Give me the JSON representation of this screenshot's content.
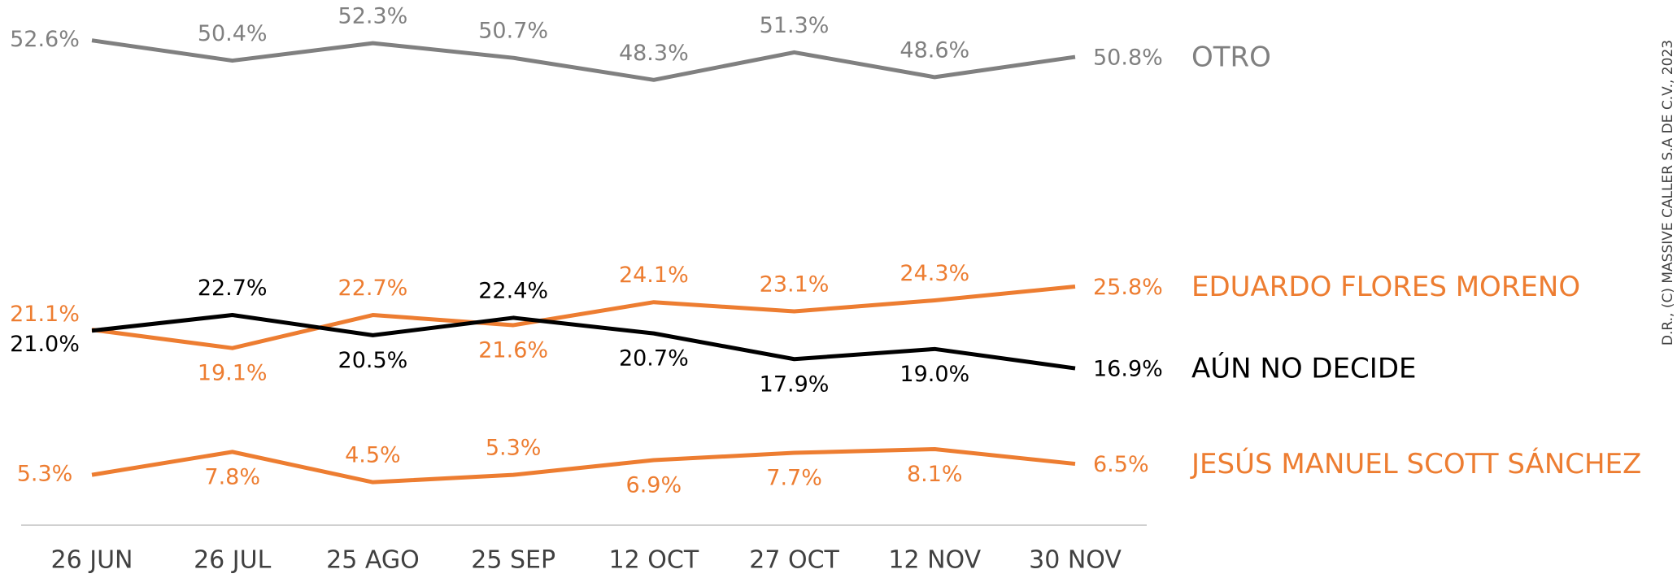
{
  "chart_data": {
    "type": "line",
    "categories": [
      "26 JUN",
      "26 JUL",
      "25 AGO",
      "25 SEP",
      "12 OCT",
      "27 OCT",
      "12 NOV",
      "30 NOV"
    ],
    "ylim": [
      0,
      57
    ],
    "series": [
      {
        "name": "OTRO",
        "color": "#808080",
        "values": [
          52.6,
          50.4,
          52.3,
          50.7,
          48.3,
          51.3,
          48.6,
          50.8
        ],
        "value_labels": [
          "52.6%",
          "50.4%",
          "52.3%",
          "50.7%",
          "48.3%",
          "51.3%",
          "48.6%",
          "50.8%"
        ]
      },
      {
        "name": "EDUARDO FLORES MORENO",
        "color": "#ed7d31",
        "values": [
          21.1,
          19.1,
          22.7,
          21.6,
          24.1,
          23.1,
          24.3,
          25.8
        ],
        "value_labels": [
          "21.1%",
          "19.1%",
          "22.7%",
          "21.6%",
          "24.1%",
          "23.1%",
          "24.3%",
          "25.8%"
        ]
      },
      {
        "name": "AÚN NO DECIDE",
        "color": "#000000",
        "values": [
          21.0,
          22.7,
          20.5,
          22.4,
          20.7,
          17.9,
          19.0,
          16.9
        ],
        "value_labels": [
          "21.0%",
          "22.7%",
          "20.5%",
          "22.4%",
          "20.7%",
          "17.9%",
          "19.0%",
          "16.9%"
        ]
      },
      {
        "name": "JESÚS MANUEL SCOTT SÁNCHEZ",
        "color": "#ed7d31",
        "values": [
          5.3,
          7.8,
          4.5,
          5.3,
          6.9,
          7.7,
          8.1,
          6.5
        ],
        "value_labels": [
          "5.3%",
          "7.8%",
          "4.5%",
          "5.3%",
          "6.9%",
          "7.7%",
          "8.1%",
          "6.5%"
        ]
      }
    ],
    "watermark": "D.R., (C) MASSIVE CALLER S.A DE C.V., 2023"
  }
}
